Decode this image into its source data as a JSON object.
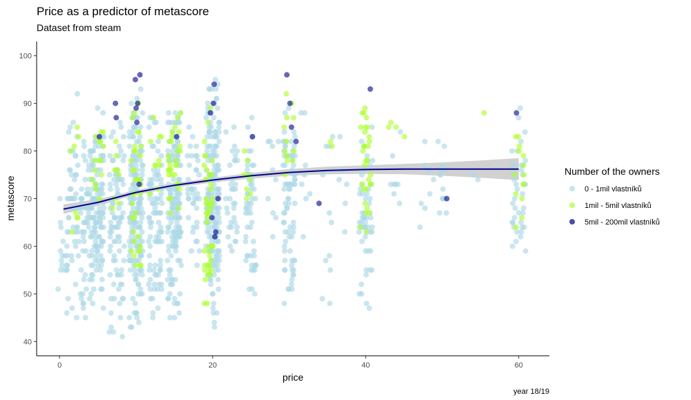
{
  "chart_data": {
    "type": "scatter",
    "title": "Price as a predictor of metascore",
    "subtitle": "Dataset from steam",
    "xlabel": "price",
    "ylabel": "metascore",
    "caption": "year 18/19",
    "xlim": [
      -3,
      64
    ],
    "ylim": [
      37,
      103
    ],
    "x_ticks": [
      0,
      20,
      40,
      60
    ],
    "y_ticks": [
      40,
      50,
      60,
      70,
      80,
      90,
      100
    ],
    "grid": false,
    "legend": {
      "title": "Number of the owners",
      "position": "right",
      "entries": [
        {
          "name": "0 - 1mil vlastníků",
          "color": "#add8e6"
        },
        {
          "name": "1mil - 5mil vlastníků",
          "color": "#adff2f"
        },
        {
          "name": "5mil - 200mil vlastníků",
          "color": "#00008b"
        }
      ]
    },
    "series": [
      {
        "name": "0 - 1mil vlastníků",
        "color": "#add8e6",
        "clusters": [
          {
            "x": 0.5,
            "spread": 0.7,
            "count": 22,
            "ymin": 40,
            "ymax": 78
          },
          {
            "x": 1.8,
            "spread": 0.8,
            "count": 45,
            "ymin": 40,
            "ymax": 98
          },
          {
            "x": 3.5,
            "spread": 0.8,
            "count": 70,
            "ymin": 42,
            "ymax": 90
          },
          {
            "x": 5.0,
            "spread": 0.8,
            "count": 110,
            "ymin": 43,
            "ymax": 90
          },
          {
            "x": 7.5,
            "spread": 1.0,
            "count": 90,
            "ymin": 40,
            "ymax": 90
          },
          {
            "x": 10.0,
            "spread": 0.9,
            "count": 170,
            "ymin": 40,
            "ymax": 96
          },
          {
            "x": 12.5,
            "spread": 0.9,
            "count": 90,
            "ymin": 42,
            "ymax": 92
          },
          {
            "x": 15.0,
            "spread": 0.9,
            "count": 150,
            "ymin": 43,
            "ymax": 92
          },
          {
            "x": 17.5,
            "spread": 0.8,
            "count": 40,
            "ymin": 55,
            "ymax": 86
          },
          {
            "x": 20.0,
            "spread": 0.9,
            "count": 190,
            "ymin": 40,
            "ymax": 97
          },
          {
            "x": 22.5,
            "spread": 0.8,
            "count": 35,
            "ymin": 55,
            "ymax": 88
          },
          {
            "x": 25.0,
            "spread": 0.7,
            "count": 55,
            "ymin": 46,
            "ymax": 91
          },
          {
            "x": 28.0,
            "spread": 0.8,
            "count": 10,
            "ymin": 55,
            "ymax": 88
          },
          {
            "x": 30.0,
            "spread": 0.8,
            "count": 80,
            "ymin": 45,
            "ymax": 92
          },
          {
            "x": 32.0,
            "spread": 0.8,
            "count": 8,
            "ymin": 58,
            "ymax": 90
          },
          {
            "x": 35.0,
            "spread": 0.8,
            "count": 12,
            "ymin": 43,
            "ymax": 94
          },
          {
            "x": 37.0,
            "spread": 0.7,
            "count": 6,
            "ymin": 62,
            "ymax": 86
          },
          {
            "x": 40.0,
            "spread": 0.9,
            "count": 55,
            "ymin": 40,
            "ymax": 90
          },
          {
            "x": 44.0,
            "spread": 0.8,
            "count": 8,
            "ymin": 62,
            "ymax": 86
          },
          {
            "x": 48.0,
            "spread": 1.0,
            "count": 10,
            "ymin": 60,
            "ymax": 88
          },
          {
            "x": 50.0,
            "spread": 0.6,
            "count": 14,
            "ymin": 61,
            "ymax": 88
          },
          {
            "x": 54.5,
            "spread": 0.5,
            "count": 2,
            "ymin": 72,
            "ymax": 76
          },
          {
            "x": 60.0,
            "spread": 0.9,
            "count": 40,
            "ymin": 57,
            "ymax": 90
          }
        ]
      },
      {
        "name": "1mil - 5mil vlastníků",
        "color": "#adff2f",
        "clusters": [
          {
            "x": 2.0,
            "spread": 0.7,
            "count": 8,
            "ymin": 60,
            "ymax": 88
          },
          {
            "x": 5.0,
            "spread": 0.8,
            "count": 15,
            "ymin": 60,
            "ymax": 91
          },
          {
            "x": 7.5,
            "spread": 0.8,
            "count": 8,
            "ymin": 65,
            "ymax": 90
          },
          {
            "x": 10.0,
            "spread": 0.7,
            "count": 35,
            "ymin": 52,
            "ymax": 94
          },
          {
            "x": 12.5,
            "spread": 0.8,
            "count": 10,
            "ymin": 65,
            "ymax": 92
          },
          {
            "x": 15.0,
            "spread": 0.8,
            "count": 30,
            "ymin": 60,
            "ymax": 92
          },
          {
            "x": 19.5,
            "spread": 0.6,
            "count": 45,
            "ymin": 43,
            "ymax": 94
          },
          {
            "x": 24.5,
            "spread": 0.6,
            "count": 8,
            "ymin": 63,
            "ymax": 90
          },
          {
            "x": 30.0,
            "spread": 0.7,
            "count": 12,
            "ymin": 70,
            "ymax": 94
          },
          {
            "x": 35.5,
            "spread": 0.4,
            "count": 2,
            "ymin": 80,
            "ymax": 86
          },
          {
            "x": 40.0,
            "spread": 0.7,
            "count": 30,
            "ymin": 60,
            "ymax": 94
          },
          {
            "x": 44.0,
            "spread": 1.2,
            "count": 4,
            "ymin": 76,
            "ymax": 93
          },
          {
            "x": 55.5,
            "spread": 0.3,
            "count": 1,
            "ymin": 88,
            "ymax": 88
          },
          {
            "x": 60.0,
            "spread": 0.7,
            "count": 14,
            "ymin": 61,
            "ymax": 89
          }
        ]
      },
      {
        "name": "5mil - 200mil vlastníků",
        "color": "#00008b",
        "points": [
          [
            5.2,
            83
          ],
          [
            7.3,
            90
          ],
          [
            7.4,
            87
          ],
          [
            9.9,
            95
          ],
          [
            10.0,
            89
          ],
          [
            10.5,
            96
          ],
          [
            10.2,
            90
          ],
          [
            10.1,
            86
          ],
          [
            10.4,
            73
          ],
          [
            15.3,
            83
          ],
          [
            19.7,
            88
          ],
          [
            19.9,
            66
          ],
          [
            20.2,
            94
          ],
          [
            20.1,
            90
          ],
          [
            20.4,
            63
          ],
          [
            20.7,
            70
          ],
          [
            20.3,
            62
          ],
          [
            25.2,
            83
          ],
          [
            29.7,
            96
          ],
          [
            30.1,
            90
          ],
          [
            30.3,
            85
          ],
          [
            30.9,
            82
          ],
          [
            33.9,
            69
          ],
          [
            40.6,
            93
          ],
          [
            50.6,
            70
          ],
          [
            59.7,
            88
          ]
        ]
      }
    ],
    "trend": {
      "color": "#00008b",
      "ribbon_color": "#bebebe",
      "points": [
        [
          0.5,
          67.8
        ],
        [
          5,
          69.2
        ],
        [
          10,
          71.3
        ],
        [
          15,
          72.8
        ],
        [
          20,
          73.9
        ],
        [
          25,
          74.8
        ],
        [
          30,
          75.5
        ],
        [
          35,
          75.9
        ],
        [
          40,
          76.1
        ],
        [
          45,
          76.2
        ],
        [
          50,
          76.2
        ],
        [
          55,
          76.2
        ],
        [
          60,
          76.2
        ]
      ],
      "band": [
        1.0,
        0.7,
        0.5,
        0.5,
        0.5,
        0.6,
        0.7,
        0.8,
        0.9,
        1.1,
        1.4,
        1.8,
        2.3
      ]
    }
  }
}
